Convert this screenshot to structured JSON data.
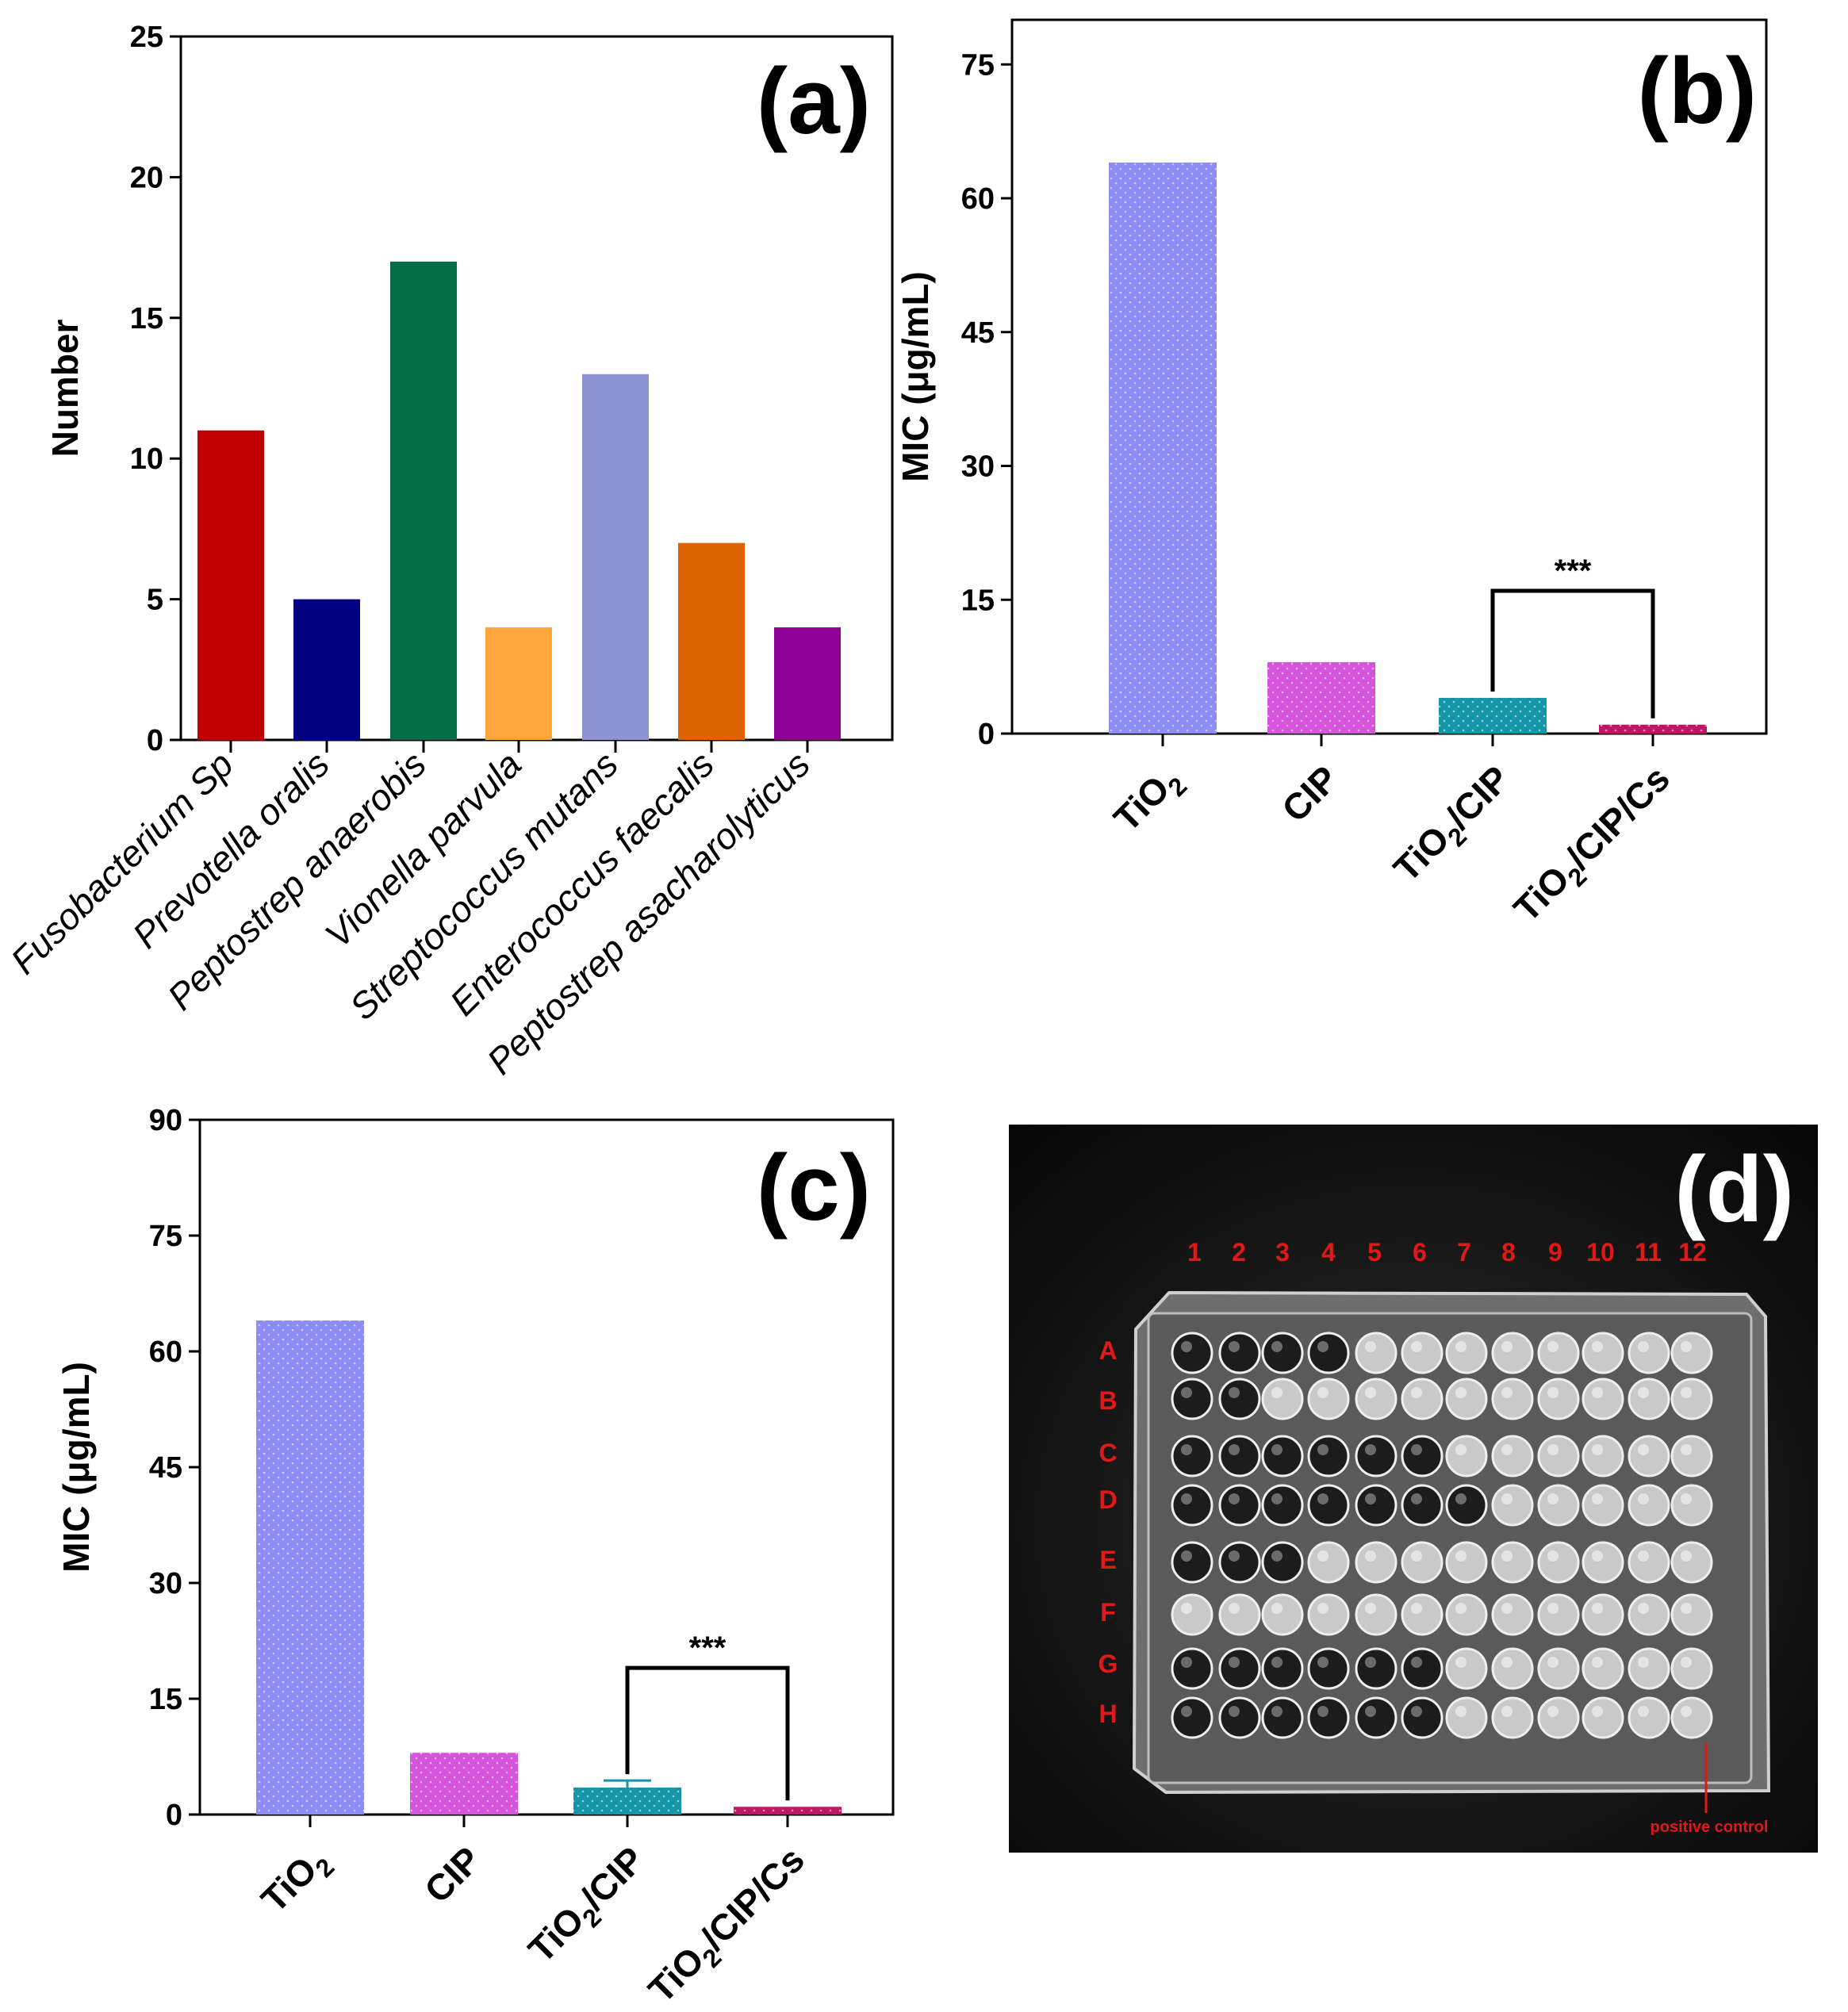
{
  "chart_data": [
    {
      "panel": "(a)",
      "type": "bar",
      "ylabel": "Number",
      "ylim": [
        0,
        25
      ],
      "yticks": [
        0,
        5,
        10,
        15,
        20,
        25
      ],
      "categories": [
        "Fusobacterium Sp",
        "Prevotella oralis",
        "Peptostrep anaerobis",
        "Vionella parvula",
        "Streptococcus mutans",
        "Enterococcus faecalis",
        "Peptostrep asacharolyticus"
      ],
      "values": [
        11,
        5,
        17,
        4,
        13,
        7,
        4
      ],
      "colors": [
        "#c00000",
        "#000080",
        "#046c46",
        "#ffa73d",
        "#8c94d4",
        "#dc6300",
        "#8c0094"
      ]
    },
    {
      "panel": "(b)",
      "type": "bar",
      "ylabel": "MIC (μg/mL)",
      "ylim": [
        0,
        80
      ],
      "yticks": [
        0,
        15,
        30,
        45,
        60,
        75
      ],
      "categories": [
        {
          "main": "TiO",
          "sub": "2",
          "rest": ""
        },
        {
          "main": "CIP",
          "sub": "",
          "rest": ""
        },
        {
          "main": "TiO",
          "sub": "2",
          "rest": "/CIP"
        },
        {
          "main": "TiO",
          "sub": "2",
          "rest": "/CIP/Cs"
        }
      ],
      "values": [
        64,
        8,
        4,
        1
      ],
      "colors": [
        "#8c8cf4",
        "#d454dc",
        "#1496a8",
        "#c01464"
      ],
      "significance": {
        "label": "***",
        "between": [
          2,
          3
        ],
        "level": 16
      }
    },
    {
      "panel": "(c)",
      "type": "bar",
      "ylabel": "MIC (μg/mL)",
      "ylim": [
        0,
        90
      ],
      "yticks": [
        0,
        15,
        30,
        45,
        60,
        75,
        90
      ],
      "categories": [
        {
          "main": "TiO",
          "sub": "2",
          "rest": ""
        },
        {
          "main": "CIP",
          "sub": "",
          "rest": ""
        },
        {
          "main": "TiO",
          "sub": "2",
          "rest": "/CIP"
        },
        {
          "main": "TiO",
          "sub": "2",
          "rest": "/CIP/Cs"
        }
      ],
      "values": [
        64,
        8,
        3.5,
        1
      ],
      "errors": [
        0,
        0,
        0.9,
        0
      ],
      "colors": [
        "#8c8cf4",
        "#d454dc",
        "#1496a8",
        "#c01464"
      ],
      "significance": {
        "label": "***",
        "between": [
          2,
          3
        ],
        "level": 19
      }
    }
  ],
  "panel_d": {
    "letter": "(d)",
    "columns": [
      "1",
      "2",
      "3",
      "4",
      "5",
      "6",
      "7",
      "8",
      "9",
      "10",
      "11",
      "12"
    ],
    "rows": [
      "A",
      "B",
      "C",
      "D",
      "E",
      "F",
      "G",
      "H"
    ],
    "annotation": "positive control",
    "dark_wells_per_row": [
      4,
      2,
      6,
      7,
      3,
      0,
      6,
      6
    ]
  }
}
